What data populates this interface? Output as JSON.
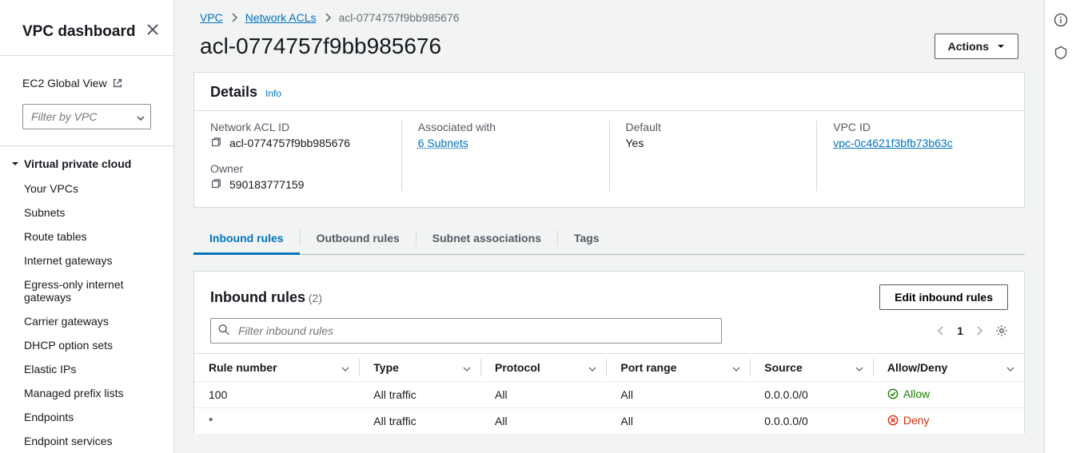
{
  "sidebar": {
    "title": "VPC dashboard",
    "ec2_link": "EC2 Global View",
    "filter_placeholder": "Filter by VPC",
    "group_header": "Virtual private cloud",
    "items": [
      "Your VPCs",
      "Subnets",
      "Route tables",
      "Internet gateways",
      "Egress-only internet gateways",
      "Carrier gateways",
      "DHCP option sets",
      "Elastic IPs",
      "Managed prefix lists",
      "Endpoints",
      "Endpoint services"
    ]
  },
  "breadcrumb": {
    "l1": "VPC",
    "l2": "Network ACLs",
    "current": "acl-0774757f9bb985676"
  },
  "page": {
    "title": "acl-0774757f9bb985676",
    "actions_label": "Actions"
  },
  "details": {
    "panel_title": "Details",
    "info_label": "Info",
    "acl_id_label": "Network ACL ID",
    "acl_id_value": "acl-0774757f9bb985676",
    "assoc_label": "Associated with",
    "assoc_value": "6 Subnets",
    "default_label": "Default",
    "default_value": "Yes",
    "vpc_label": "VPC ID",
    "vpc_value": "vpc-0c4621f3bfb73b63c",
    "owner_label": "Owner",
    "owner_value": "590183777159"
  },
  "tabs": {
    "inbound": "Inbound rules",
    "outbound": "Outbound rules",
    "subnet": "Subnet associations",
    "tags": "Tags"
  },
  "rules": {
    "title": "Inbound rules",
    "count": "(2)",
    "edit_label": "Edit inbound rules",
    "search_placeholder": "Filter inbound rules",
    "page_num": "1",
    "columns": {
      "rule": "Rule number",
      "type": "Type",
      "protocol": "Protocol",
      "port": "Port range",
      "source": "Source",
      "allow": "Allow/Deny"
    },
    "rows": [
      {
        "rule": "100",
        "type": "All traffic",
        "protocol": "All",
        "port": "All",
        "source": "0.0.0.0/0",
        "action": "Allow",
        "action_kind": "allow"
      },
      {
        "rule": "*",
        "type": "All traffic",
        "protocol": "All",
        "port": "All",
        "source": "0.0.0.0/0",
        "action": "Deny",
        "action_kind": "deny"
      }
    ]
  }
}
